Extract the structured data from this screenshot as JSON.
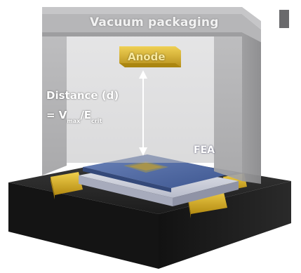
{
  "diagram": {
    "vacuum_label": "Vacuum packaging",
    "anode_label": "Anode",
    "distance_label": "Distance (d)",
    "formula": {
      "prefix": "= V",
      "sub1": "max",
      "slash": "/E",
      "sub2": "crit"
    },
    "fea_label": "FEA"
  },
  "colors": {
    "package_gray": "#a9a9ab",
    "package_inner": "#c5c5c7",
    "base_black": "#1a1a1a",
    "gold_pad": "#d9b32a",
    "fea_blue": "#4f6aa3",
    "anode_gold": "#d8b233"
  }
}
